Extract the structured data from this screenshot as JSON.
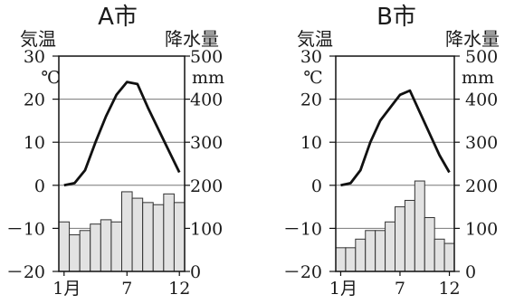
{
  "chart_data": [
    {
      "type": "bar",
      "title": "A市",
      "temp_label": "気温",
      "precip_label": "降水量",
      "temp_unit": "℃",
      "precip_unit": "mm",
      "months": [
        "1月",
        "7",
        "12"
      ],
      "temp_ticks": [
        "30",
        "20",
        "10",
        "0",
        "－10",
        "－20"
      ],
      "precip_ticks": [
        "500",
        "400",
        "300",
        "200",
        "100",
        "0"
      ],
      "temp_ylim": [
        -20,
        30
      ],
      "precip_ylim": [
        0,
        500
      ],
      "temperature": [
        0,
        0.5,
        3.5,
        10,
        16,
        21,
        24,
        23.5,
        18,
        13,
        8,
        3
      ],
      "precipitation": [
        115,
        85,
        95,
        110,
        120,
        115,
        185,
        170,
        160,
        155,
        180,
        160
      ],
      "grid": true
    },
    {
      "type": "bar",
      "title": "B市",
      "temp_label": "気温",
      "precip_label": "降水量",
      "temp_unit": "℃",
      "precip_unit": "mm",
      "months": [
        "1月",
        "7",
        "12"
      ],
      "temp_ticks": [
        "30",
        "20",
        "10",
        "0",
        "－10",
        "－20"
      ],
      "precip_ticks": [
        "500",
        "400",
        "300",
        "200",
        "100",
        "0"
      ],
      "temp_ylim": [
        -20,
        30
      ],
      "precip_ylim": [
        0,
        500
      ],
      "temperature": [
        0,
        0.5,
        3.5,
        10,
        15,
        18,
        21,
        22,
        17,
        12,
        7,
        3
      ],
      "precipitation": [
        55,
        55,
        75,
        95,
        95,
        115,
        150,
        165,
        210,
        125,
        75,
        65
      ],
      "grid": true
    }
  ]
}
